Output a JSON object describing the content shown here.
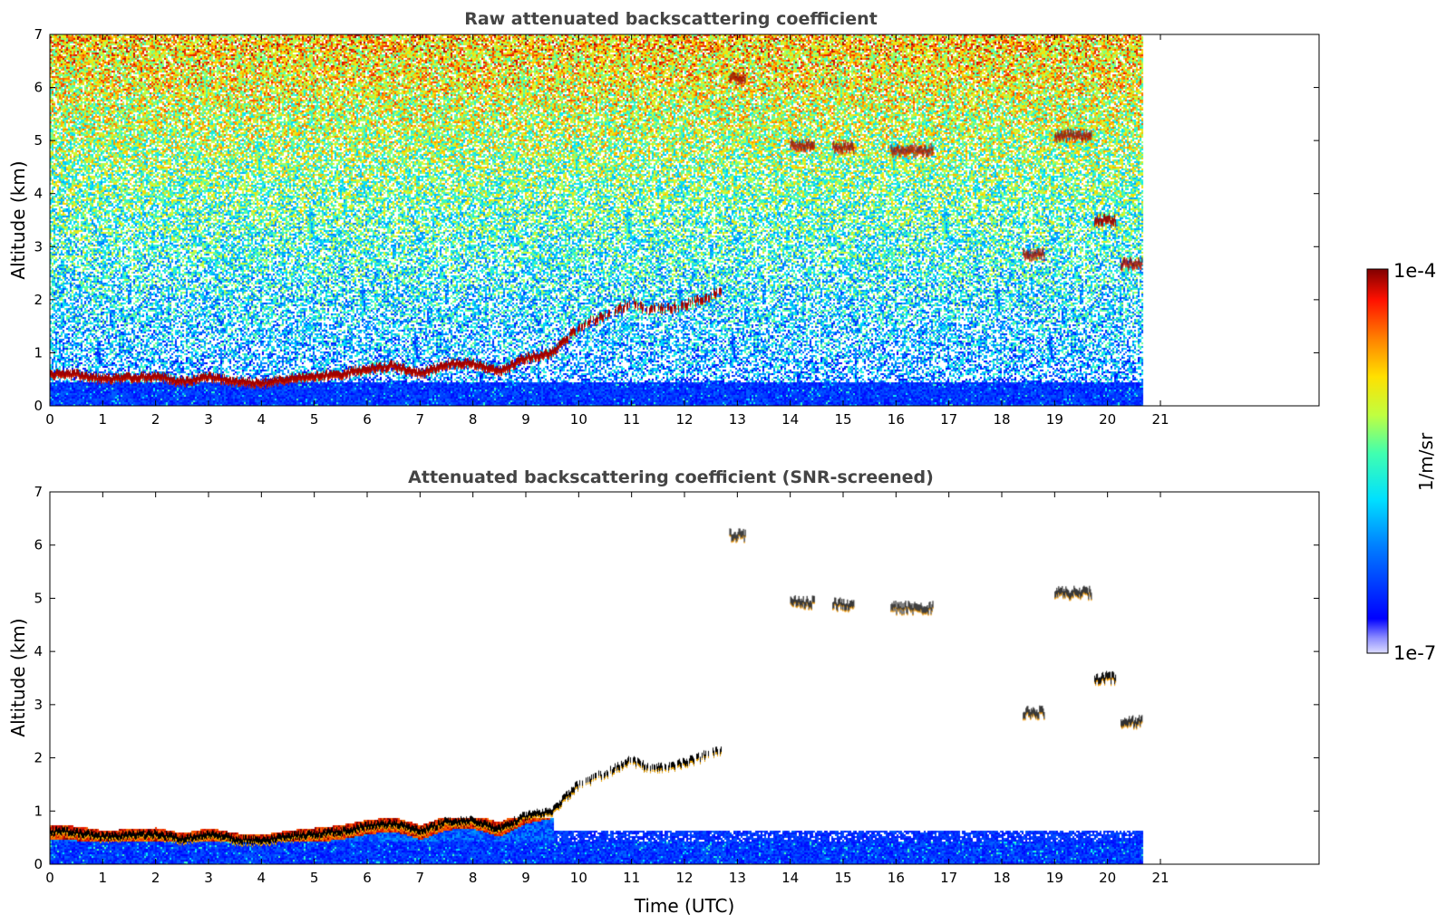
{
  "chart_data": [
    {
      "type": "heatmap",
      "title": "Raw attenuated backscattering coefficient",
      "xlabel": "",
      "ylabel": "Altitude (km)",
      "xlim": [
        0,
        24
      ],
      "ylim": [
        0,
        7
      ],
      "x_ticks": [
        "0",
        "1",
        "2",
        "3",
        "4",
        "5",
        "6",
        "7",
        "8",
        "9",
        "10",
        "11",
        "12",
        "13",
        "14",
        "15",
        "16",
        "17",
        "18",
        "19",
        "20",
        "21"
      ],
      "y_ticks": [
        "0",
        "1",
        "2",
        "3",
        "4",
        "5",
        "6",
        "7"
      ],
      "data_end_time": 20.65,
      "noise": "full",
      "boundary_layer_top": [
        [
          0,
          0.6
        ],
        [
          0.5,
          0.58
        ],
        [
          1,
          0.5
        ],
        [
          2,
          0.55
        ],
        [
          2.5,
          0.45
        ],
        [
          3,
          0.55
        ],
        [
          3.5,
          0.45
        ],
        [
          4,
          0.42
        ],
        [
          4.5,
          0.5
        ],
        [
          5,
          0.55
        ],
        [
          5.5,
          0.6
        ],
        [
          6,
          0.7
        ],
        [
          6.5,
          0.75
        ],
        [
          7,
          0.6
        ],
        [
          7.5,
          0.78
        ],
        [
          8,
          0.8
        ],
        [
          8.5,
          0.65
        ],
        [
          9,
          0.9
        ],
        [
          9.5,
          1.0
        ],
        [
          10,
          1.5
        ],
        [
          10.5,
          1.7
        ],
        [
          11,
          1.95
        ],
        [
          11.3,
          1.8
        ],
        [
          11.8,
          1.85
        ],
        [
          12.3,
          2.0
        ],
        [
          12.7,
          2.15
        ]
      ],
      "cloud_layers": [
        {
          "x0": 12.85,
          "x1": 13.15,
          "y": 6.18
        },
        {
          "x0": 14.0,
          "x1": 14.45,
          "y": 4.92
        },
        {
          "x0": 14.8,
          "x1": 15.2,
          "y": 4.88
        },
        {
          "x0": 15.9,
          "x1": 16.7,
          "y": 4.82
        },
        {
          "x0": 18.4,
          "x1": 18.8,
          "y": 2.85
        },
        {
          "x0": 19.0,
          "x1": 19.7,
          "y": 5.1
        },
        {
          "x0": 19.75,
          "x1": 20.15,
          "y": 3.5
        },
        {
          "x0": 20.25,
          "x1": 20.65,
          "y": 2.68
        }
      ],
      "colorbar": {
        "min_label": "1e-7",
        "max_label": "1e-4",
        "label": "1/m/sr"
      }
    },
    {
      "type": "heatmap",
      "title": "Attenuated backscattering coefficient (SNR-screened)",
      "xlabel": "Time (UTC)",
      "ylabel": "Altitude (km)",
      "xlim": [
        0,
        24
      ],
      "ylim": [
        0,
        7
      ],
      "x_ticks": [
        "0",
        "1",
        "2",
        "3",
        "4",
        "5",
        "6",
        "7",
        "8",
        "9",
        "10",
        "11",
        "12",
        "13",
        "14",
        "15",
        "16",
        "17",
        "18",
        "19",
        "20",
        "21"
      ],
      "y_ticks": [
        "0",
        "1",
        "2",
        "3",
        "4",
        "5",
        "6",
        "7"
      ],
      "data_end_time": 20.65,
      "noise": "screened"
    }
  ],
  "colorbar": {
    "max_label": "1e-4",
    "min_label": "1e-7",
    "label": "1/m/sr"
  }
}
